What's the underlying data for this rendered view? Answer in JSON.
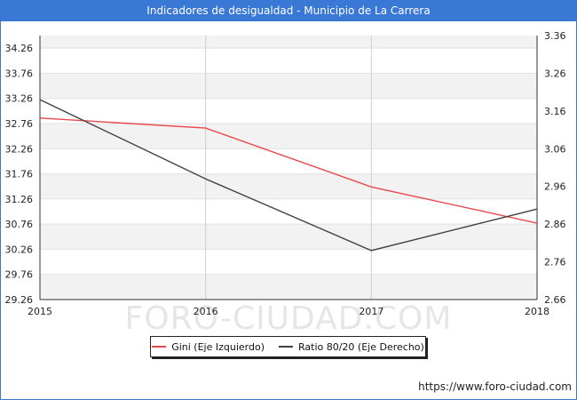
{
  "title": "Indicadores de desigualdad - Municipio de La Carrera",
  "watermark": "FORO-CIUDAD.COM",
  "source_url": "https://www.foro-ciudad.com",
  "colors": {
    "title_bg": "#3a78d6",
    "gini": "#e8474c",
    "ratio": "#404040",
    "band": "#f2f2f2",
    "grid": "#cfcfcf"
  },
  "chart_data": {
    "type": "line",
    "x": [
      2015,
      2016,
      2017,
      2018
    ],
    "x_tick_labels": [
      "2015",
      "2016",
      "2017",
      "2018"
    ],
    "left_axis": {
      "ylim": [
        29.26,
        34.51
      ],
      "ticks": [
        "29.26",
        "29.76",
        "30.26",
        "30.76",
        "31.26",
        "31.76",
        "32.26",
        "32.76",
        "33.26",
        "33.76",
        "34.26"
      ]
    },
    "right_axis": {
      "ylim": [
        2.66,
        3.36
      ],
      "ticks": [
        "2.66",
        "2.76",
        "2.86",
        "2.96",
        "3.06",
        "3.16",
        "3.26",
        "3.36"
      ]
    },
    "series": [
      {
        "name": "Gini (Eje Izquierdo)",
        "axis": "left",
        "values": [
          32.87,
          32.67,
          31.5,
          30.78
        ]
      },
      {
        "name": "Ratio 80/20 (Eje Derecho)",
        "axis": "right",
        "values": [
          3.19,
          2.98,
          2.79,
          2.9
        ]
      }
    ],
    "grid": true,
    "legend_position": "bottom"
  }
}
